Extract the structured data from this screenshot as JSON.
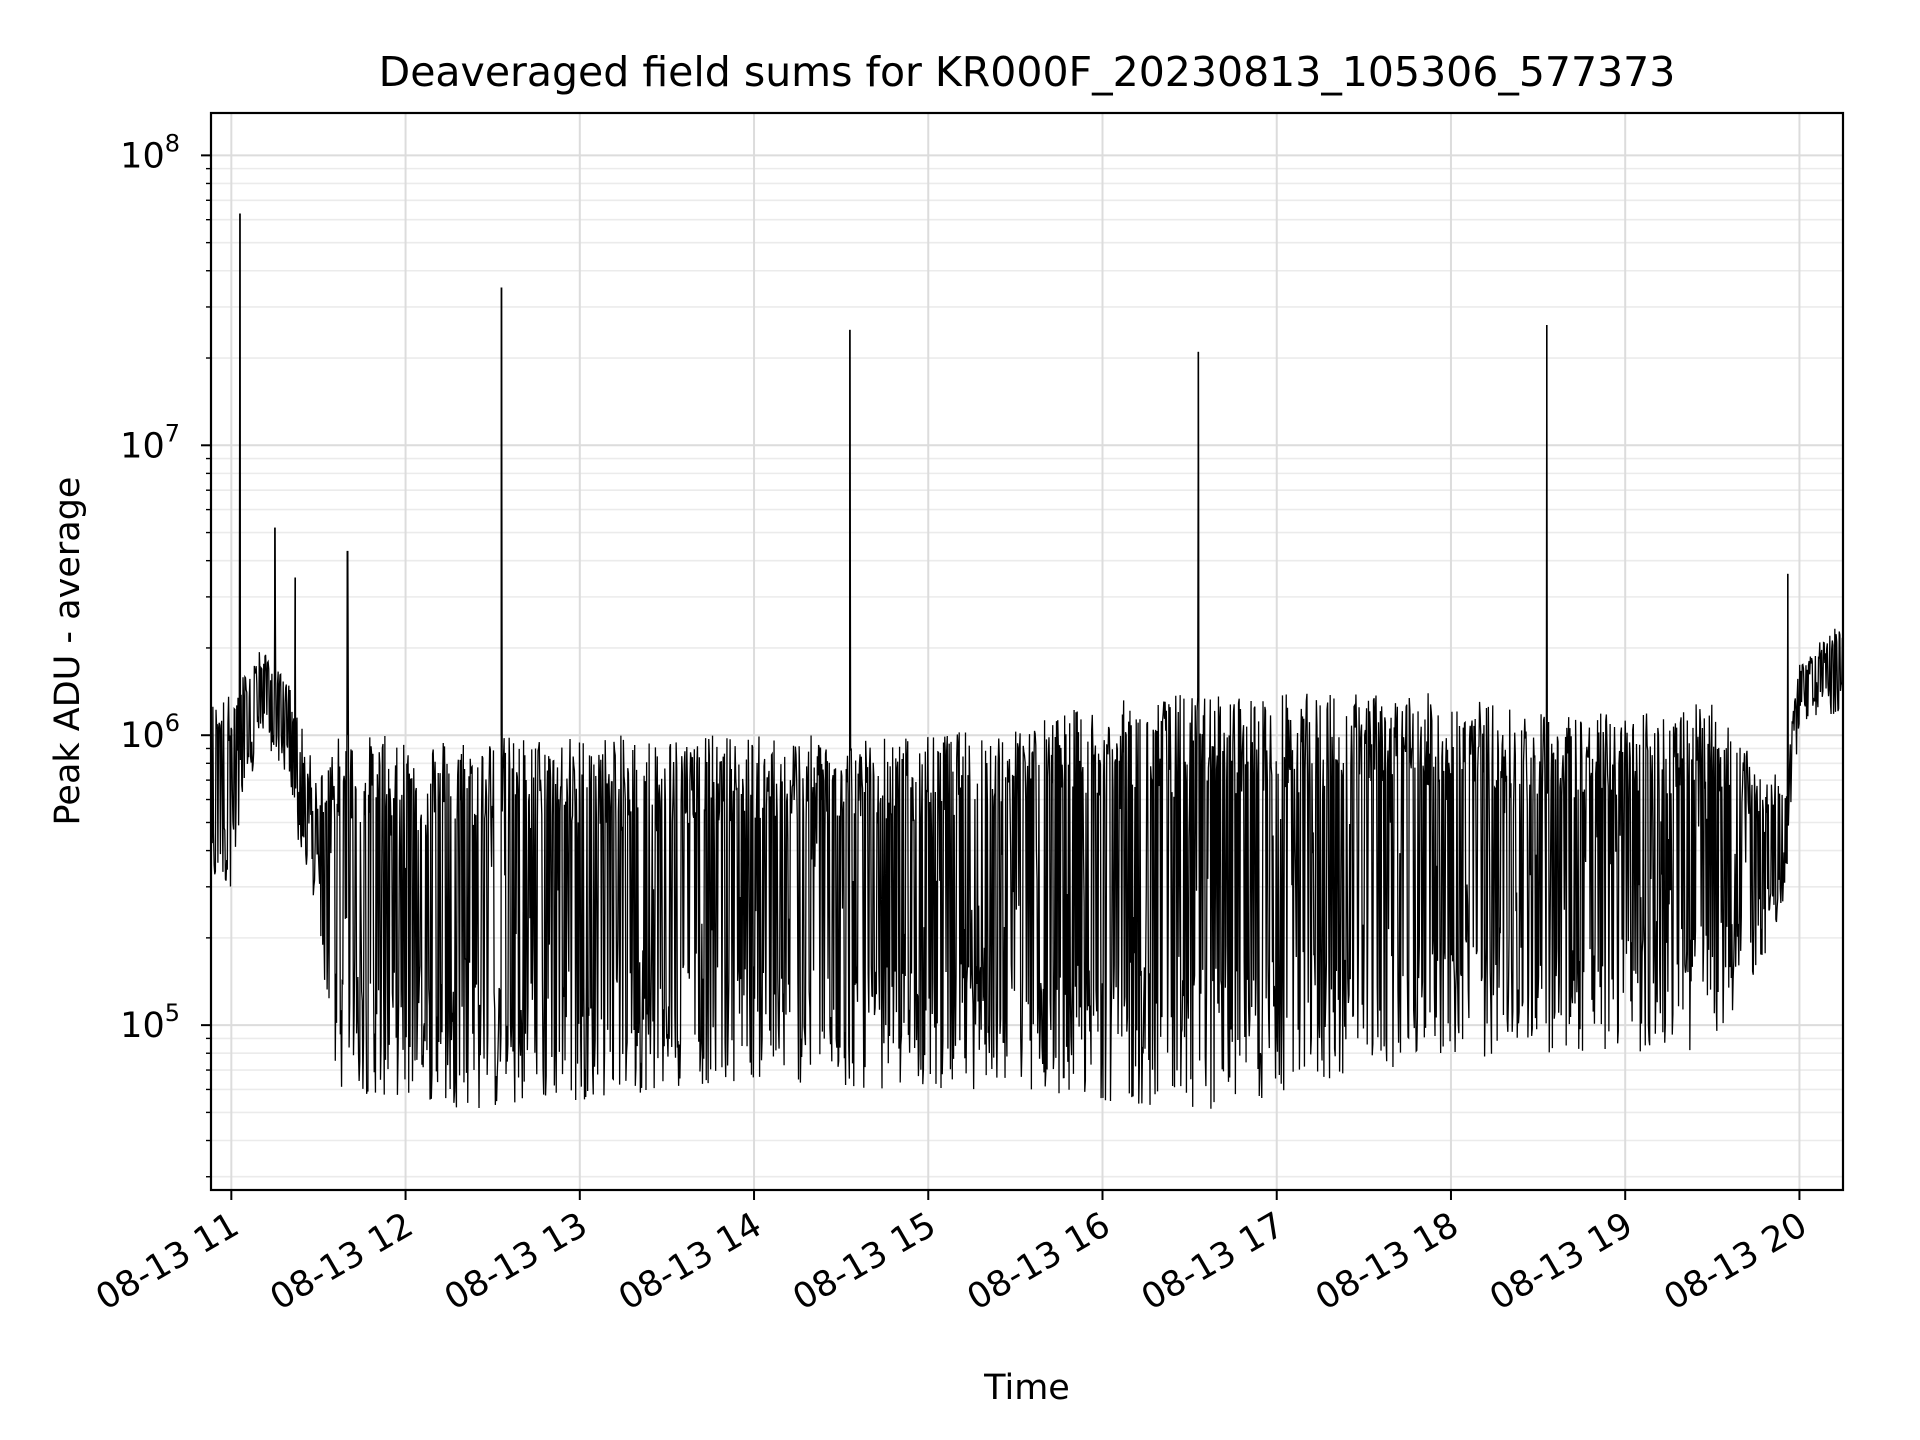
{
  "chart_data": {
    "type": "line",
    "title": "Deaveraged field sums for KR000F_20230813_105306_577373",
    "xlabel": "Time",
    "ylabel": "Peak ADU - average",
    "yscale": "log",
    "ylim": [
      27000,
      140000000
    ],
    "xlim": [
      "2023-08-13 10:53",
      "2023-08-13 20:15"
    ],
    "grid": true,
    "line_color": "#000000",
    "x_ticks": [
      {
        "t": "2023-08-13 11:00",
        "label": "08-13 11"
      },
      {
        "t": "2023-08-13 12:00",
        "label": "08-13 12"
      },
      {
        "t": "2023-08-13 13:00",
        "label": "08-13 13"
      },
      {
        "t": "2023-08-13 14:00",
        "label": "08-13 14"
      },
      {
        "t": "2023-08-13 15:00",
        "label": "08-13 15"
      },
      {
        "t": "2023-08-13 16:00",
        "label": "08-13 16"
      },
      {
        "t": "2023-08-13 17:00",
        "label": "08-13 17"
      },
      {
        "t": "2023-08-13 18:00",
        "label": "08-13 18"
      },
      {
        "t": "2023-08-13 19:00",
        "label": "08-13 19"
      },
      {
        "t": "2023-08-13 20:00",
        "label": "08-13 20"
      }
    ],
    "y_ticks": [
      {
        "value": 100000,
        "base": "10",
        "exp": "5"
      },
      {
        "value": 1000000,
        "base": "10",
        "exp": "6"
      },
      {
        "value": 10000000,
        "base": "10",
        "exp": "7"
      },
      {
        "value": 100000000,
        "base": "10",
        "exp": "8"
      }
    ],
    "series": [
      {
        "envelope_x": [
          "2023-08-13 10:53",
          "2023-08-13 11:00",
          "2023-08-13 11:10",
          "2023-08-13 11:20",
          "2023-08-13 11:25",
          "2023-08-13 11:30",
          "2023-08-13 11:35",
          "2023-08-13 12:00",
          "2023-08-13 12:30",
          "2023-08-13 13:00",
          "2023-08-13 13:30",
          "2023-08-13 14:00",
          "2023-08-13 14:30",
          "2023-08-13 15:00",
          "2023-08-13 15:30",
          "2023-08-13 16:00",
          "2023-08-13 16:30",
          "2023-08-13 17:00",
          "2023-08-13 17:30",
          "2023-08-13 18:00",
          "2023-08-13 18:30",
          "2023-08-13 19:00",
          "2023-08-13 19:30",
          "2023-08-13 19:45",
          "2023-08-13 19:55",
          "2023-08-13 20:00",
          "2023-08-13 20:15"
        ],
        "envelope_low": [
          300000,
          300000,
          1000000,
          700000,
          300000,
          250000,
          60000,
          55000,
          50000,
          55000,
          60000,
          65000,
          60000,
          60000,
          60000,
          55000,
          50000,
          55000,
          70000,
          75000,
          80000,
          80000,
          80000,
          150000,
          250000,
          1100000,
          1200000
        ],
        "envelope_high": [
          1300000,
          1400000,
          2000000,
          1500000,
          1000000,
          700000,
          1000000,
          1000000,
          1000000,
          1000000,
          1000000,
          1000000,
          1000000,
          1000000,
          1100000,
          1300000,
          1400000,
          1400000,
          1400000,
          1400000,
          1200000,
          1200000,
          1300000,
          800000,
          700000,
          1800000,
          2500000
        ],
        "spikes": [
          {
            "t": "2023-08-13 11:03",
            "value": 63000000
          },
          {
            "t": "2023-08-13 11:15",
            "value": 5200000
          },
          {
            "t": "2023-08-13 11:22",
            "value": 3500000
          },
          {
            "t": "2023-08-13 11:40",
            "value": 4300000
          },
          {
            "t": "2023-08-13 12:33",
            "value": 35000000
          },
          {
            "t": "2023-08-13 14:33",
            "value": 25000000
          },
          {
            "t": "2023-08-13 16:33",
            "value": 21000000
          },
          {
            "t": "2023-08-13 18:33",
            "value": 26000000
          },
          {
            "t": "2023-08-13 19:56",
            "value": 3600000
          }
        ]
      }
    ]
  }
}
